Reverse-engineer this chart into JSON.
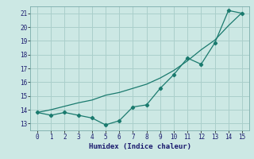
{
  "line1_x": [
    0,
    1,
    2,
    3,
    4,
    5,
    6,
    7,
    8,
    9,
    10,
    11,
    12,
    13,
    14,
    15
  ],
  "line1_y": [
    13.8,
    13.6,
    13.8,
    13.6,
    13.4,
    12.9,
    13.2,
    14.2,
    14.35,
    15.55,
    16.55,
    17.75,
    17.3,
    18.85,
    21.2,
    21.0
  ],
  "line2_x": [
    0,
    1,
    2,
    3,
    4,
    5,
    6,
    7,
    8,
    9,
    10,
    11,
    12,
    13,
    14,
    15
  ],
  "line2_y": [
    13.8,
    14.0,
    14.25,
    14.5,
    14.7,
    15.05,
    15.25,
    15.55,
    15.85,
    16.3,
    16.85,
    17.55,
    18.35,
    19.05,
    20.1,
    21.05
  ],
  "line_color": "#1a7a6e",
  "bg_color": "#cce8e4",
  "grid_color": "#aacfcb",
  "xlabel": "Humidex (Indice chaleur)",
  "xlim": [
    -0.5,
    15.5
  ],
  "ylim": [
    12.5,
    21.5
  ],
  "yticks": [
    13,
    14,
    15,
    16,
    17,
    18,
    19,
    20,
    21
  ],
  "xticks": [
    0,
    1,
    2,
    3,
    4,
    5,
    6,
    7,
    8,
    9,
    10,
    11,
    12,
    13,
    14,
    15
  ],
  "marker": "D",
  "marker_size": 2.2,
  "line_width": 0.9
}
